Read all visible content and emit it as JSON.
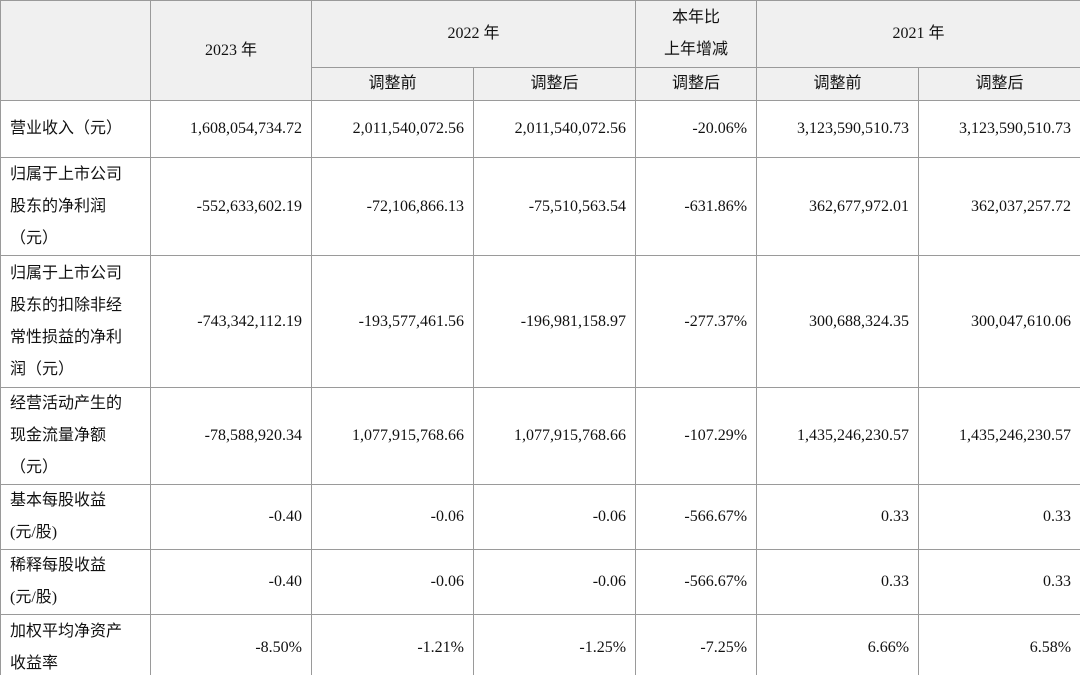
{
  "table": {
    "header_top": [
      "2023 年",
      "2022 年",
      [
        "本年比",
        "上年增减"
      ],
      "2021 年"
    ],
    "header_sub": [
      "调整前",
      "调整后",
      "调整后",
      "调整前",
      "调整后"
    ],
    "rows": [
      {
        "label": [
          "营业收入（元）"
        ],
        "cells": [
          "1,608,054,734.72",
          "2,011,540,072.56",
          "2,011,540,072.56",
          "-20.06%",
          "3,123,590,510.73",
          "3,123,590,510.73"
        ]
      },
      {
        "label": [
          "归属于上市公司",
          "股东的净利润",
          "（元）"
        ],
        "cells": [
          "-552,633,602.19",
          "-72,106,866.13",
          "-75,510,563.54",
          "-631.86%",
          "362,677,972.01",
          "362,037,257.72"
        ]
      },
      {
        "label": [
          "归属于上市公司",
          "股东的扣除非经",
          "常性损益的净利",
          "润（元）"
        ],
        "cells": [
          "-743,342,112.19",
          "-193,577,461.56",
          "-196,981,158.97",
          "-277.37%",
          "300,688,324.35",
          "300,047,610.06"
        ]
      },
      {
        "label": [
          "经营活动产生的",
          "现金流量净额",
          "（元）"
        ],
        "cells": [
          "-78,588,920.34",
          "1,077,915,768.66",
          "1,077,915,768.66",
          "-107.29%",
          "1,435,246,230.57",
          "1,435,246,230.57"
        ]
      },
      {
        "label": [
          "基本每股收益",
          "(元/股)"
        ],
        "cells": [
          "-0.40",
          "-0.06",
          "-0.06",
          "-566.67%",
          "0.33",
          "0.33"
        ]
      },
      {
        "label": [
          "稀释每股收益",
          "(元/股)"
        ],
        "cells": [
          "-0.40",
          "-0.06",
          "-0.06",
          "-566.67%",
          "0.33",
          "0.33"
        ]
      },
      {
        "label": [
          "加权平均净资产",
          "收益率"
        ],
        "cells": [
          "-8.50%",
          "-1.21%",
          "-1.25%",
          "-7.25%",
          "6.66%",
          "6.58%"
        ]
      }
    ]
  }
}
